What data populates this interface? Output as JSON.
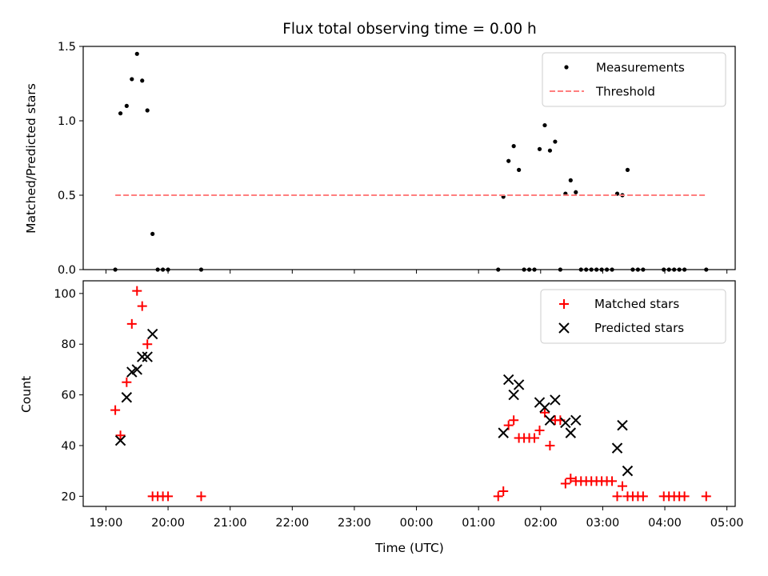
{
  "title": "Flux total observing time = 0.00 h",
  "xlabel": "Time (UTC)",
  "x_ticks": [
    "19:00",
    "20:00",
    "21:00",
    "22:00",
    "23:00",
    "00:00",
    "01:00",
    "02:00",
    "03:00",
    "04:00",
    "05:00"
  ],
  "colors": {
    "measurement": "#000000",
    "threshold": "#ff7f7f",
    "matched": "#ff0000",
    "predicted": "#000000"
  },
  "chart_data": [
    {
      "type": "scatter",
      "ylabel": "Matched/Predicted stars",
      "xlim": [
        "19:00",
        "05:00"
      ],
      "ylim": [
        0,
        1.5
      ],
      "y_ticks": [
        "0.0",
        "0.5",
        "1.0",
        "1.5"
      ],
      "legend_position": "top-right",
      "legend": [
        "Measurements",
        "Threshold"
      ],
      "series": [
        {
          "name": "Measurements",
          "kind": "scatter",
          "marker": "dot",
          "x": [
            "19:09",
            "19:14",
            "19:20",
            "19:25",
            "19:30",
            "19:35",
            "19:40",
            "19:45",
            "19:50",
            "19:55",
            "20:00",
            "20:32",
            "01:19",
            "01:24",
            "01:29",
            "01:34",
            "01:39",
            "01:44",
            "01:49",
            "01:54",
            "01:59",
            "02:04",
            "02:09",
            "02:14",
            "02:19",
            "02:24",
            "02:29",
            "02:34",
            "02:39",
            "02:44",
            "02:49",
            "02:54",
            "02:59",
            "03:04",
            "03:09",
            "03:14",
            "03:19",
            "03:24",
            "03:29",
            "03:34",
            "03:39",
            "03:59",
            "04:04",
            "04:09",
            "04:14",
            "04:19",
            "04:40"
          ],
          "y": [
            0.0,
            1.05,
            1.1,
            1.28,
            1.45,
            1.27,
            1.07,
            0.24,
            0.0,
            0.0,
            0.0,
            0.0,
            0.0,
            0.49,
            0.73,
            0.83,
            0.67,
            0.0,
            0.0,
            0.0,
            0.81,
            0.97,
            0.8,
            0.86,
            0.0,
            0.51,
            0.6,
            0.52,
            0.0,
            0.0,
            0.0,
            0.0,
            0.0,
            0.0,
            0.0,
            0.51,
            0.5,
            0.67,
            0.0,
            0.0,
            0.0,
            0.0,
            0.0,
            0.0,
            0.0,
            0.0,
            0.0
          ]
        },
        {
          "name": "Threshold",
          "kind": "line",
          "dash": true,
          "x": [
            "19:09",
            "04:40"
          ],
          "y": [
            0.5,
            0.5
          ]
        }
      ]
    },
    {
      "type": "scatter",
      "ylabel": "Count",
      "xlim": [
        "19:00",
        "05:00"
      ],
      "ylim": [
        16,
        105
      ],
      "y_ticks": [
        "20",
        "40",
        "60",
        "80",
        "100"
      ],
      "legend_position": "top-right",
      "legend": [
        "Matched stars",
        "Predicted stars"
      ],
      "series": [
        {
          "name": "Matched stars",
          "kind": "scatter",
          "marker": "plus",
          "x": [
            "19:09",
            "19:14",
            "19:20",
            "19:25",
            "19:30",
            "19:35",
            "19:40",
            "19:45",
            "19:50",
            "19:55",
            "20:00",
            "20:32",
            "01:19",
            "01:24",
            "01:29",
            "01:34",
            "01:39",
            "01:44",
            "01:49",
            "01:54",
            "01:59",
            "02:04",
            "02:09",
            "02:14",
            "02:19",
            "02:24",
            "02:29",
            "02:34",
            "02:39",
            "02:44",
            "02:49",
            "02:54",
            "02:59",
            "03:04",
            "03:09",
            "03:14",
            "03:19",
            "03:24",
            "03:29",
            "03:34",
            "03:39",
            "03:59",
            "04:04",
            "04:09",
            "04:14",
            "04:19",
            "04:40"
          ],
          "y": [
            54,
            44,
            65,
            88,
            101,
            95,
            80,
            20,
            20,
            20,
            20,
            20,
            20,
            22,
            48,
            50,
            43,
            43,
            43,
            43,
            46,
            53,
            40,
            50,
            50,
            25,
            27,
            26,
            26,
            26,
            26,
            26,
            26,
            26,
            26,
            20,
            24,
            20,
            20,
            20,
            20,
            20,
            20,
            20,
            20,
            20,
            20
          ]
        },
        {
          "name": "Predicted stars",
          "kind": "scatter",
          "marker": "x",
          "x": [
            "19:14",
            "19:20",
            "19:25",
            "19:30",
            "19:35",
            "19:40",
            "19:45",
            "01:24",
            "01:29",
            "01:34",
            "01:39",
            "01:59",
            "02:04",
            "02:09",
            "02:14",
            "02:24",
            "02:29",
            "02:34",
            "03:14",
            "03:19",
            "03:24"
          ],
          "y": [
            42,
            59,
            69,
            70,
            75,
            75,
            84,
            45,
            66,
            60,
            64,
            57,
            55,
            50,
            58,
            49,
            45,
            50,
            39,
            48,
            30
          ]
        }
      ]
    }
  ]
}
